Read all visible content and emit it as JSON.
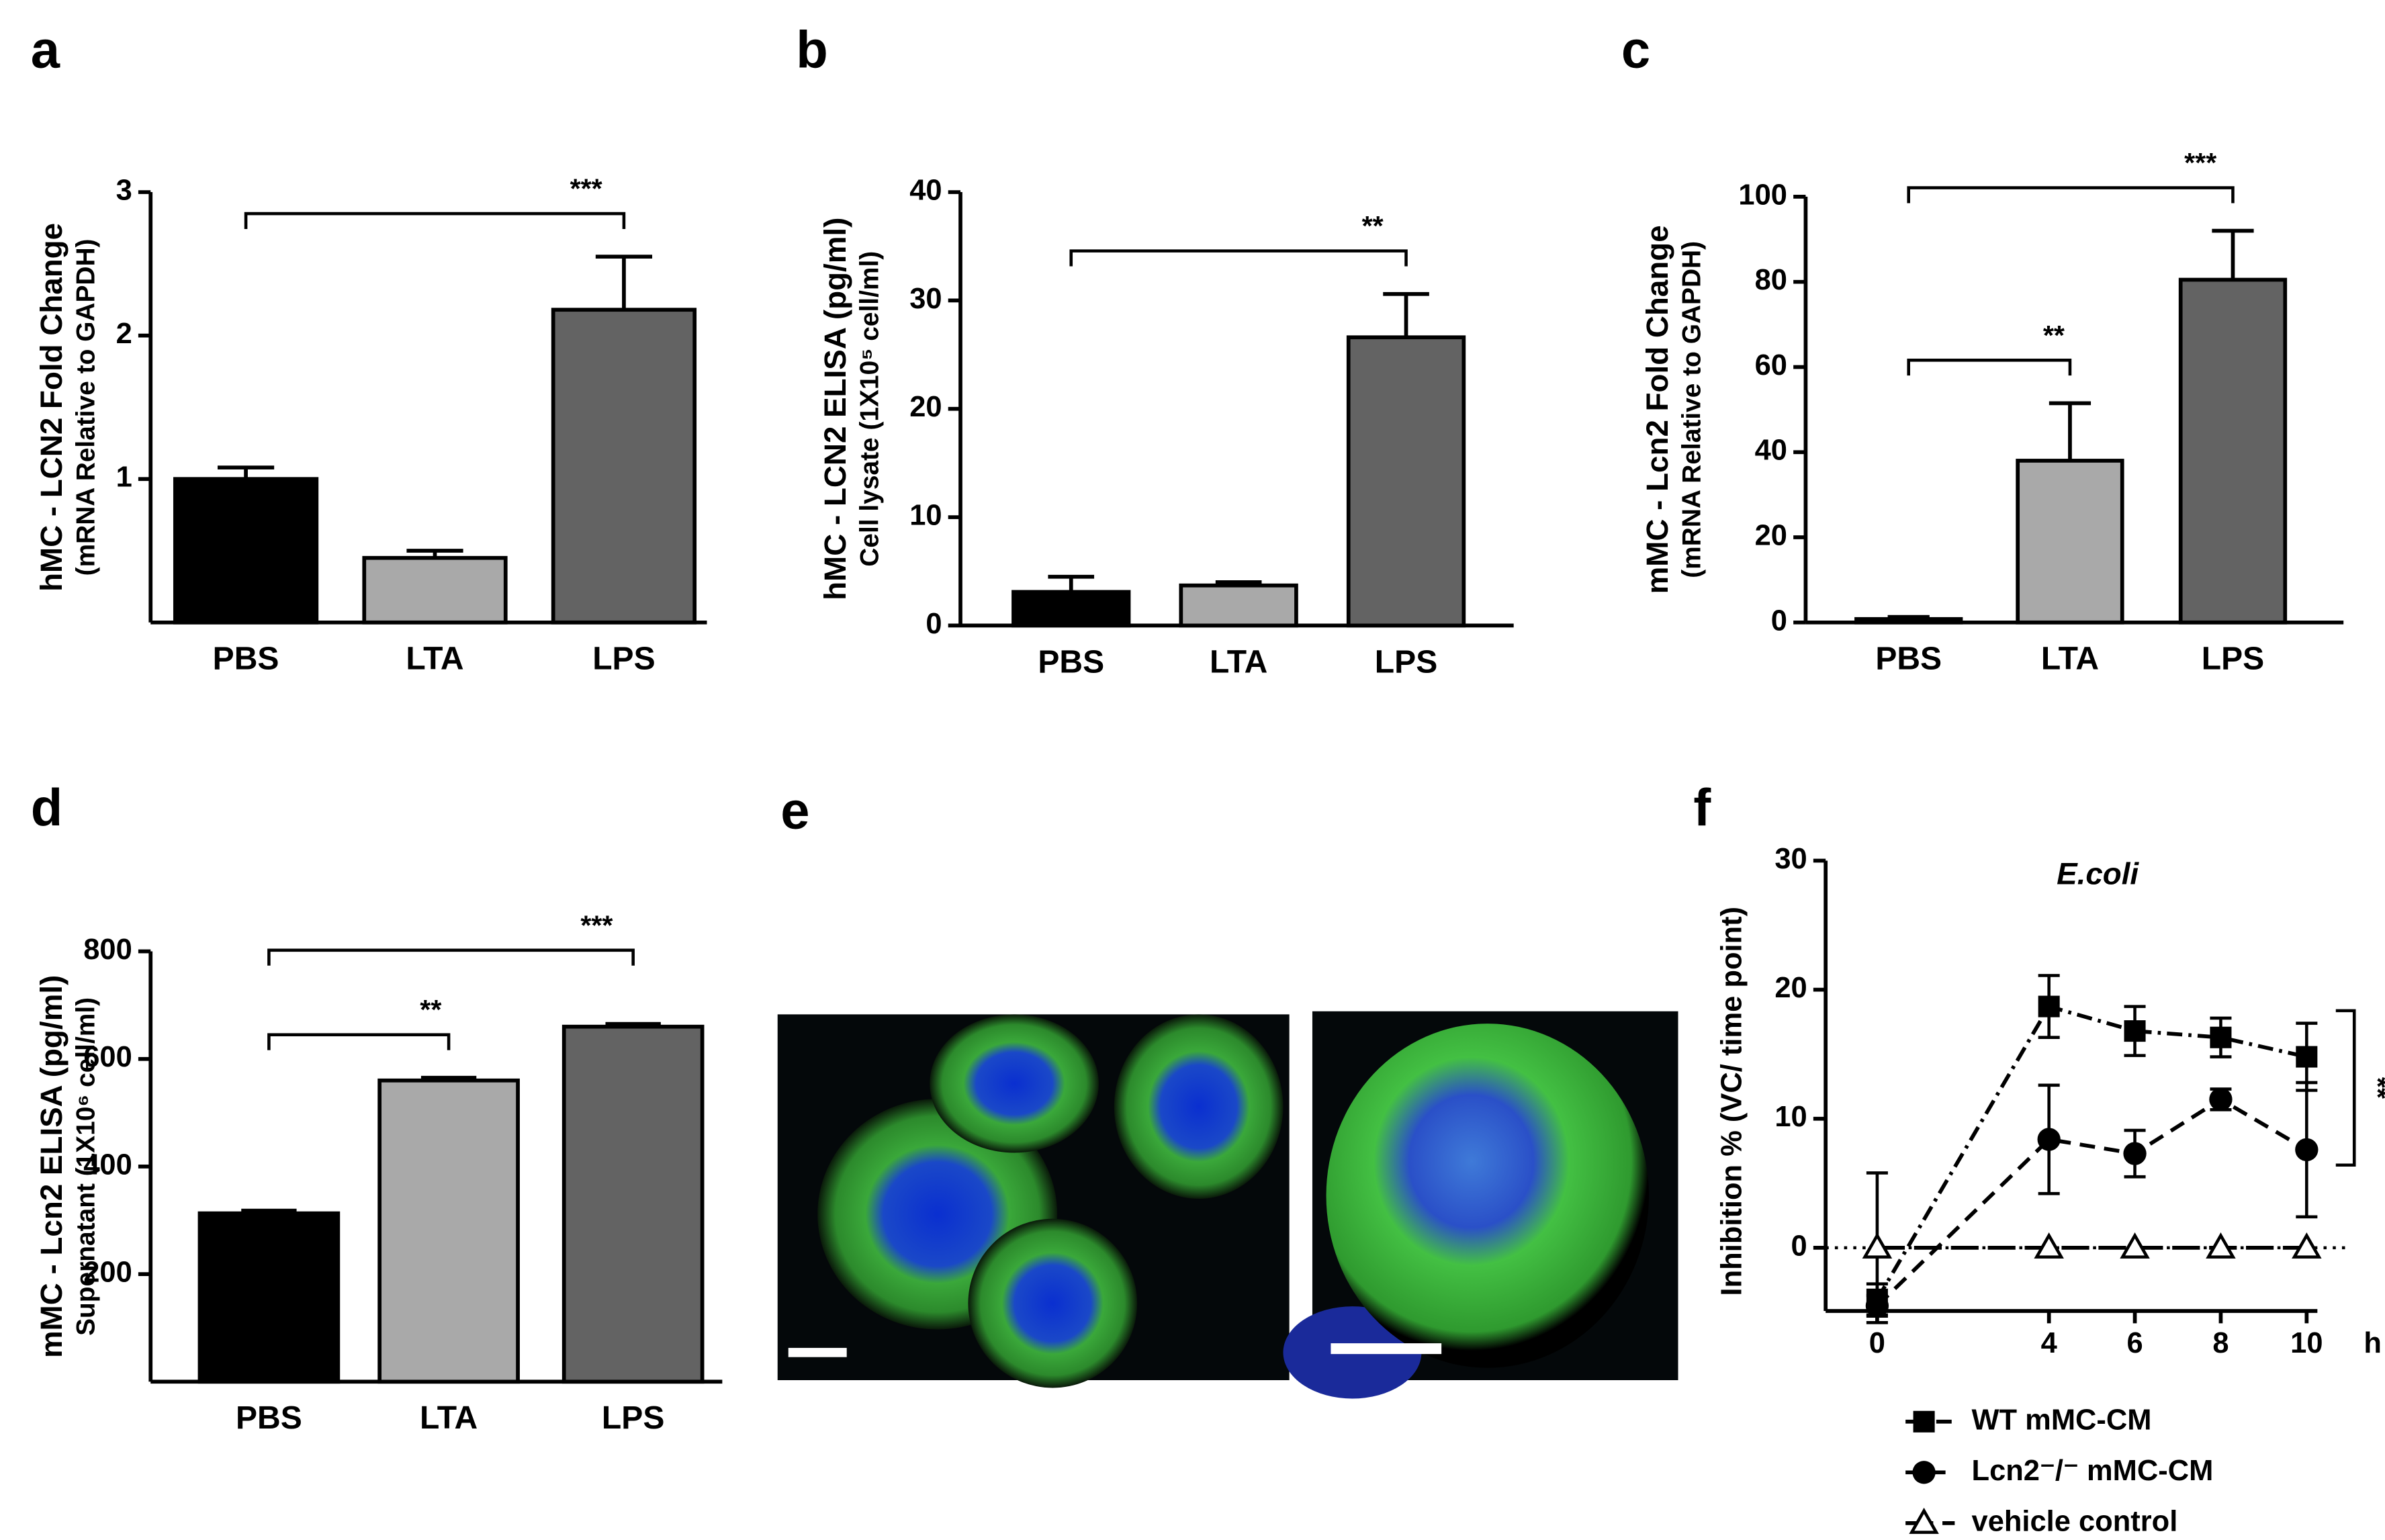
{
  "chart_data": [
    {
      "type": "bar",
      "panel": "a",
      "ylabel": [
        "hMC - LCN2 Fold Change",
        "(mRNA Relative to GAPDH)"
      ],
      "categories": [
        "PBS",
        "LTA",
        "LPS"
      ],
      "values": [
        1.0,
        0.45,
        2.18
      ],
      "errors": [
        0.08,
        0.05,
        0.37
      ],
      "colors": [
        "#000000",
        "#a9a9a9",
        "#636363"
      ],
      "ylim": [
        0,
        3
      ],
      "yticks": [
        1,
        2,
        3
      ],
      "significance": [
        {
          "from": 0,
          "to": 2,
          "label": "***"
        }
      ]
    },
    {
      "type": "bar",
      "panel": "b",
      "ylabel": [
        "hMC - LCN2 ELISA (pg/ml)",
        "Cell lysate (1X10⁵ cell/ml)"
      ],
      "categories": [
        "PBS",
        "LTA",
        "LPS"
      ],
      "values": [
        3.1,
        3.7,
        26.6
      ],
      "errors": [
        1.4,
        0.3,
        4.0
      ],
      "colors": [
        "#000000",
        "#a9a9a9",
        "#636363"
      ],
      "ylim": [
        0,
        40
      ],
      "yticks": [
        0,
        10,
        20,
        30,
        40
      ],
      "significance": [
        {
          "from": 0,
          "to": 2,
          "label": "**"
        }
      ]
    },
    {
      "type": "bar",
      "panel": "c",
      "ylabel": [
        "mMC - Lcn2 Fold Change",
        "(mRNA Relative to GAPDH)"
      ],
      "categories": [
        "PBS",
        "LTA",
        "LPS"
      ],
      "values": [
        0.8,
        38,
        80.5
      ],
      "errors": [
        0.5,
        13.5,
        11.5
      ],
      "colors": [
        "#000000",
        "#a9a9a9",
        "#636363"
      ],
      "ylim": [
        0,
        100
      ],
      "yticks": [
        0,
        20,
        40,
        60,
        80,
        100
      ],
      "significance": [
        {
          "from": 0,
          "to": 1,
          "label": "**"
        },
        {
          "from": 0,
          "to": 2,
          "label": "***"
        }
      ]
    },
    {
      "type": "bar",
      "panel": "d",
      "ylabel": [
        "mMC - Lcn2 ELISA (pg/ml)",
        "Supernatant (1X10⁶ cell/ml)"
      ],
      "categories": [
        "PBS",
        "LTA",
        "LPS"
      ],
      "values": [
        313,
        560,
        660
      ],
      "errors": [
        5,
        5,
        5
      ],
      "colors": [
        "#000000",
        "#a9a9a9",
        "#636363"
      ],
      "ylim": [
        0,
        800
      ],
      "yticks": [
        200,
        400,
        600,
        800
      ],
      "significance": [
        {
          "from": 0,
          "to": 1,
          "label": "**"
        },
        {
          "from": 0,
          "to": 2,
          "label": "***"
        }
      ]
    },
    {
      "type": "image",
      "panel": "e"
    },
    {
      "type": "line",
      "panel": "f",
      "title": "E.coli",
      "ylabel": [
        "Inhibition % (VC/ time point)"
      ],
      "xunit": "h",
      "x": [
        0,
        4,
        6,
        8,
        10
      ],
      "xlim": [
        -1.2,
        10.25
      ],
      "xticks": [
        0,
        4,
        6,
        8,
        10
      ],
      "ylim": [
        -4.9,
        30
      ],
      "yticks": [
        0,
        10,
        20,
        30
      ],
      "series": [
        {
          "name": "WT mMC-CM",
          "color": "#000000",
          "marker": "square",
          "values": [
            -4,
            18.7,
            16.8,
            16.3,
            14.8
          ],
          "errors": [
            1.2,
            2.4,
            1.9,
            1.5,
            2.6
          ]
        },
        {
          "name": "Lcn2⁻/⁻ mMC-CM",
          "color": "#000000",
          "marker": "circle",
          "values": [
            -4.5,
            8.4,
            7.3,
            11.5,
            7.6
          ],
          "errors": [
            0.8,
            4.2,
            1.8,
            0.8,
            5.2
          ]
        },
        {
          "name": "vehicle  control",
          "color": "#000000",
          "marker": "triangle",
          "values": [
            0,
            0,
            0,
            0,
            0
          ],
          "errors": [
            5.8,
            0,
            0,
            0,
            0
          ]
        }
      ],
      "significance": [
        {
          "from": 0,
          "to": 1,
          "label": "**"
        }
      ]
    }
  ]
}
